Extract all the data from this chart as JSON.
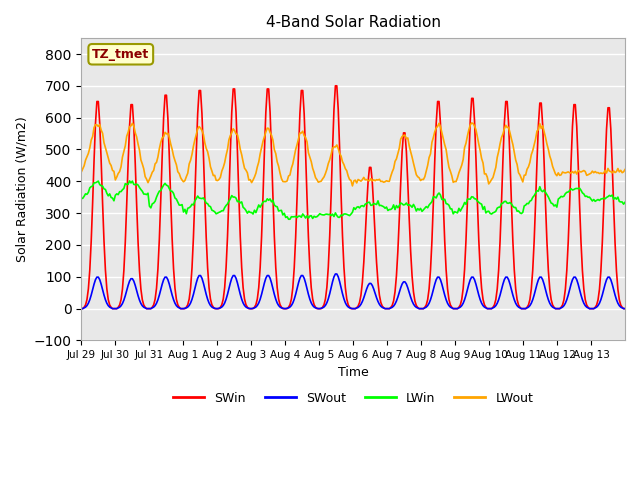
{
  "title": "4-Band Solar Radiation",
  "xlabel": "Time",
  "ylabel": "Solar Radiation (W/m2)",
  "ylim": [
    -100,
    850
  ],
  "yticks": [
    -100,
    0,
    100,
    200,
    300,
    400,
    500,
    600,
    700,
    800
  ],
  "label_box": "TZ_tmet",
  "colors": {
    "SWin": "#ff0000",
    "SWout": "#0000ff",
    "LWin": "#00ff00",
    "LWout": "#ffa500"
  },
  "n_days": 16,
  "tick_labels": [
    "Jul 29",
    "Jul 30",
    "Jul 31",
    "Aug 1",
    "Aug 2",
    "Aug 3",
    "Aug 4",
    "Aug 5",
    "Aug 6",
    "Aug 7",
    "Aug 8",
    "Aug 9",
    "Aug 10",
    "Aug 11",
    "Aug 12",
    "Aug 13"
  ],
  "background_color": "#e8e8e8",
  "grid_color": "#ffffff",
  "legend_entries": [
    "SWin",
    "SWout",
    "LWin",
    "LWout"
  ]
}
